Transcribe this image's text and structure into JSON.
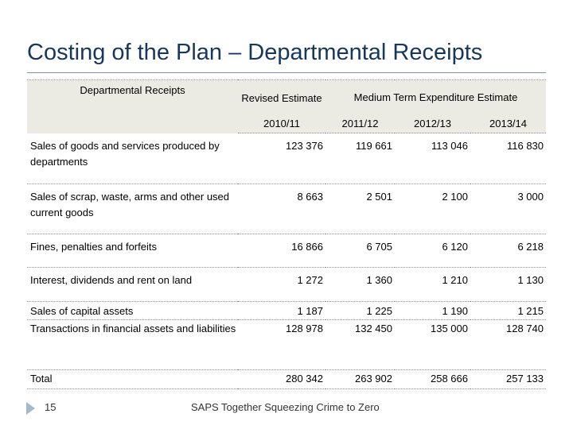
{
  "slide": {
    "title": "Costing of the Plan – Departmental Receipts",
    "page_number": "15",
    "footer": "SAPS Together Squeezing Crime to Zero"
  },
  "table": {
    "header": {
      "row_label": "Departmental Receipts",
      "revised": "Revised Estimate",
      "mtef": "Medium Term Expenditure Estimate",
      "years": [
        "2010/11",
        "2011/12",
        "2012/13",
        "2013/14"
      ]
    },
    "rows": [
      {
        "label": "Sales of goods and services produced by departments",
        "values": [
          "123 376",
          "119 661",
          "113 046",
          "116 830"
        ]
      },
      {
        "label": "Sales of scrap, waste, arms and other used current goods",
        "values": [
          "8 663",
          "2 501",
          "2 100",
          "3 000"
        ]
      },
      {
        "label": "Fines, penalties and forfeits",
        "values": [
          "16 866",
          "6 705",
          "6 120",
          "6 218"
        ]
      },
      {
        "label": "Interest, dividends and rent on land",
        "values": [
          "1 272",
          "1 360",
          "1 210",
          "1 130"
        ]
      },
      {
        "label": "Sales of capital assets",
        "values": [
          "1 187",
          "1 225",
          "1 190",
          "1 215"
        ]
      },
      {
        "label": "Transactions in financial assets and liabilities",
        "values": [
          "128 978",
          "132 450",
          "135 000",
          "128 740"
        ]
      },
      {
        "label": "Total",
        "values": [
          "280 342",
          "263 902",
          "258 666",
          "257 133"
        ]
      }
    ]
  }
}
